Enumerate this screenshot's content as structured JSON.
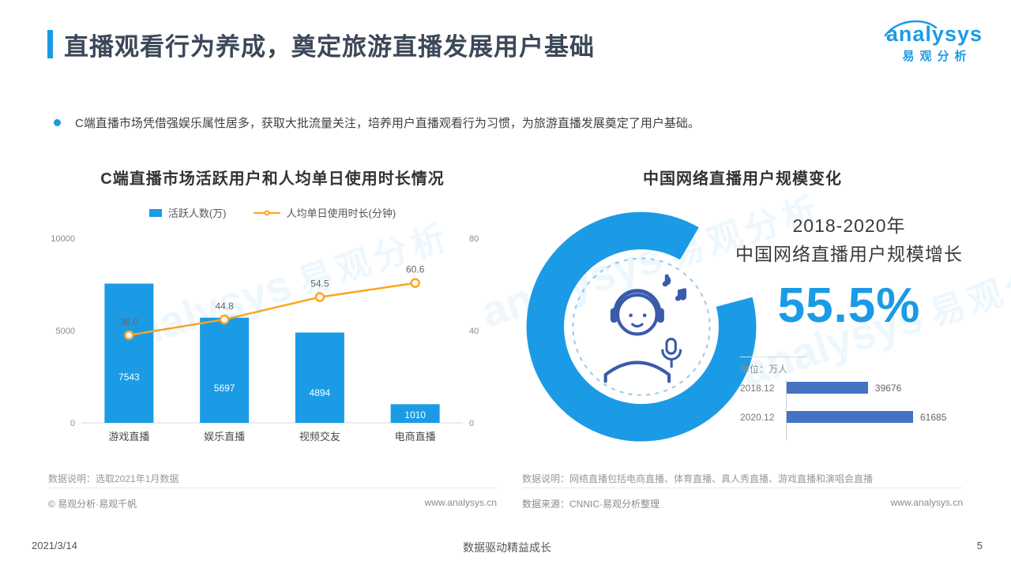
{
  "theme": {
    "accent": "#1B9BE5",
    "line_orange": "#FFA41E",
    "mini_bar": "#4573C4",
    "navy": "#3A5BA9",
    "title_text": "#3C4858"
  },
  "page": {
    "title": "直播观看行为养成，奠定旅游直播发展用户基础",
    "bullet": "C端直播市场凭借强娱乐属性居多，获取大批流量关注，培养用户直播观看行为习惯，为旅游直播发展奠定了用户基础。",
    "footer_date": "2021/3/14",
    "footer_slogan": "数据驱动精益成长",
    "page_number": "5"
  },
  "logo": {
    "brand": "analysys",
    "brand_cn": "易观分析"
  },
  "watermark": {
    "brand": "analysys",
    "brand_cn": "易观分析"
  },
  "left_chart": {
    "note": "数据说明：选取2021年1月数据",
    "copyright": "© 易观分析·易观千帆",
    "site": "www.analysys.cn"
  },
  "right_section": {
    "headline_line1": "2018-2020年",
    "headline_line2": "中国网络直播用户规模增长",
    "unit_label": "单位：万人",
    "note": "数据说明：网络直播包括电商直播、体育直播、真人秀直播、游戏直播和演唱会直播",
    "source": "数据来源：CNNIC·易观分析整理",
    "site": "www.analysys.cn"
  },
  "chart_data": [
    {
      "type": "bar",
      "title": "C端直播市场活跃用户和人均单日使用时长情况",
      "categories": [
        "游戏直播",
        "娱乐直播",
        "视频交友",
        "电商直播"
      ],
      "series": [
        {
          "name": "活跃人数(万)",
          "kind": "bar",
          "axis": "left",
          "values": [
            7543,
            5697,
            4894,
            1010
          ]
        },
        {
          "name": "人均单日使用时长(分钟)",
          "kind": "line",
          "axis": "right",
          "values": [
            38.0,
            44.8,
            54.5,
            60.6
          ]
        }
      ],
      "left_axis": {
        "min": 0,
        "max": 10000,
        "ticks": [
          0,
          5000,
          10000
        ]
      },
      "right_axis": {
        "min": 0,
        "max": 80,
        "ticks": [
          0,
          40,
          80
        ]
      },
      "grid": false,
      "legend_position": "top"
    },
    {
      "type": "bar",
      "orientation": "horizontal",
      "title": "中国网络直播用户规模变化",
      "categories": [
        "2018.12",
        "2020.12"
      ],
      "values": [
        39676,
        61685
      ],
      "unit": "万人",
      "growth_label": "55.5%"
    }
  ]
}
